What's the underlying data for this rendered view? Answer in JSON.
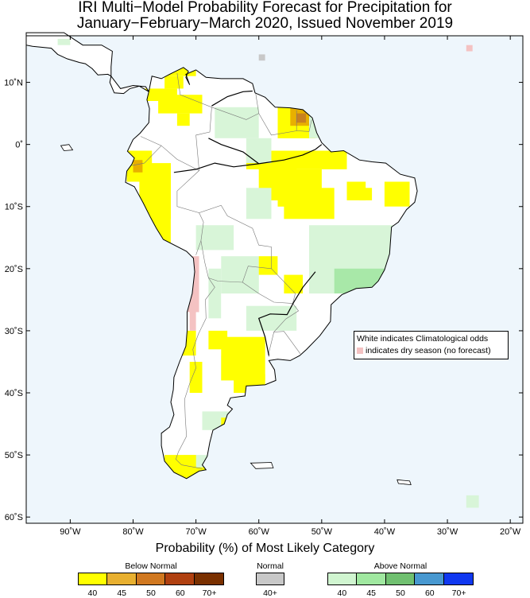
{
  "title": {
    "line1": "IRI Multi−Model Probability Forecast for Precipitation for",
    "line2": "January−February−March 2020, Issued November 2019"
  },
  "map": {
    "lon_range": [
      -97,
      -18
    ],
    "lat_range": [
      -61,
      17.5
    ],
    "lon_ticks": [
      "90˚W",
      "80˚W",
      "70˚W",
      "60˚W",
      "50˚W",
      "40˚W",
      "30˚W",
      "20˚W"
    ],
    "lat_ticks": [
      "10˚N",
      "0˚",
      "10˚S",
      "20˚S",
      "30˚S",
      "40˚S",
      "50˚S",
      "60˚S"
    ],
    "colors": {
      "ocean": "#eef6fc",
      "land": "#ffffff",
      "below_40": "#ffff00",
      "below_45": "#e8b000",
      "below_50": "#c88020",
      "above_40": "#d8f5d8",
      "above_45": "#a8e8a8",
      "normal": "#c8c8c8",
      "dry": "#f4c2c2"
    }
  },
  "map_note": {
    "line1": "White indicates Climatological odds",
    "line2": "indicates dry season (no forecast)"
  },
  "legend": {
    "title": "Probability (%) of Most Likely Category",
    "below": {
      "label": "Below Normal",
      "colors": [
        "#ffff00",
        "#e8b030",
        "#d07820",
        "#b04010",
        "#7a3000"
      ],
      "ticks": [
        "40",
        "45",
        "50",
        "60",
        "70+"
      ]
    },
    "normal": {
      "label": "Normal",
      "colors": [
        "#c8c8c8"
      ],
      "ticks": [
        "40+"
      ]
    },
    "above": {
      "label": "Above Normal",
      "colors": [
        "#d0f5d0",
        "#a0e8a0",
        "#70c070",
        "#4898d0",
        "#1038f0"
      ],
      "ticks": [
        "40",
        "45",
        "50",
        "60",
        "70+"
      ]
    }
  }
}
